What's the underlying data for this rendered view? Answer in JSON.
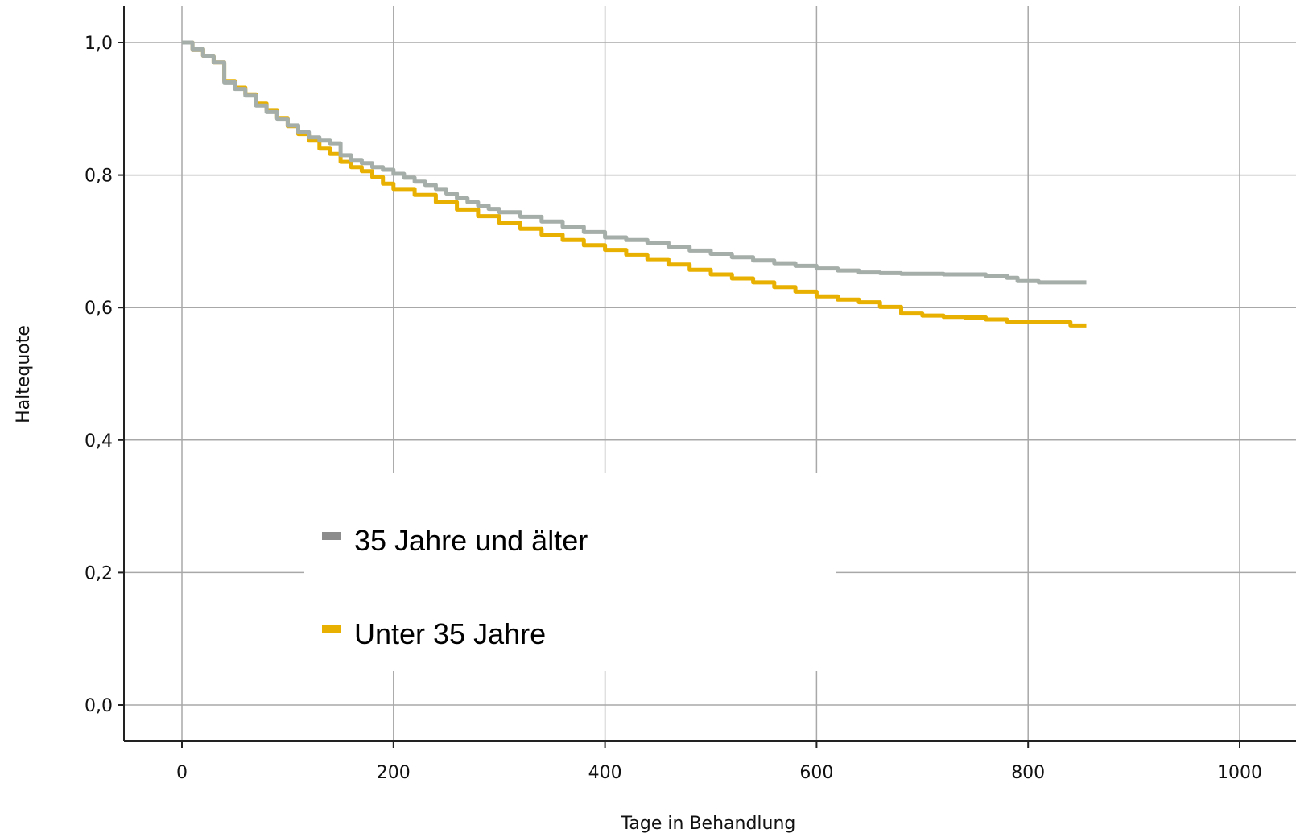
{
  "chart_data": {
    "type": "line",
    "title": "",
    "xlabel": "Tage in Behandlung",
    "ylabel": "Haltequote",
    "xlim": [
      0,
      1000
    ],
    "ylim": [
      0.0,
      1.0
    ],
    "x_ticks": [
      0,
      200,
      400,
      600,
      800,
      1000
    ],
    "x_tick_labels": [
      "0",
      "200",
      "400",
      "600",
      "800",
      "1000"
    ],
    "y_ticks": [
      0.0,
      0.2,
      0.4,
      0.6,
      0.8,
      1.0
    ],
    "y_tick_labels": [
      "0,0",
      "0,2",
      "0,4",
      "0,6",
      "0,8",
      "1,0"
    ],
    "grid": true,
    "legend_position": "center-left inside plot",
    "series": [
      {
        "name": "35 Jahre und älter",
        "color": "#a6aea9",
        "legend_color": "#8c8c8c",
        "step": true,
        "points": [
          [
            0,
            1.0
          ],
          [
            10,
            0.99
          ],
          [
            20,
            0.98
          ],
          [
            30,
            0.97
          ],
          [
            40,
            0.94
          ],
          [
            50,
            0.93
          ],
          [
            60,
            0.92
          ],
          [
            70,
            0.905
          ],
          [
            80,
            0.895
          ],
          [
            90,
            0.885
          ],
          [
            100,
            0.875
          ],
          [
            110,
            0.865
          ],
          [
            120,
            0.857
          ],
          [
            130,
            0.852
          ],
          [
            140,
            0.848
          ],
          [
            150,
            0.83
          ],
          [
            160,
            0.823
          ],
          [
            170,
            0.818
          ],
          [
            180,
            0.812
          ],
          [
            190,
            0.808
          ],
          [
            200,
            0.802
          ],
          [
            210,
            0.796
          ],
          [
            220,
            0.79
          ],
          [
            230,
            0.785
          ],
          [
            240,
            0.779
          ],
          [
            250,
            0.772
          ],
          [
            260,
            0.765
          ],
          [
            270,
            0.759
          ],
          [
            280,
            0.754
          ],
          [
            290,
            0.749
          ],
          [
            300,
            0.744
          ],
          [
            320,
            0.737
          ],
          [
            340,
            0.73
          ],
          [
            360,
            0.722
          ],
          [
            380,
            0.714
          ],
          [
            400,
            0.706
          ],
          [
            420,
            0.702
          ],
          [
            440,
            0.698
          ],
          [
            460,
            0.692
          ],
          [
            480,
            0.686
          ],
          [
            500,
            0.681
          ],
          [
            520,
            0.676
          ],
          [
            540,
            0.671
          ],
          [
            560,
            0.667
          ],
          [
            580,
            0.663
          ],
          [
            600,
            0.659
          ],
          [
            620,
            0.656
          ],
          [
            640,
            0.653
          ],
          [
            660,
            0.652
          ],
          [
            680,
            0.651
          ],
          [
            700,
            0.651
          ],
          [
            720,
            0.65
          ],
          [
            740,
            0.65
          ],
          [
            760,
            0.648
          ],
          [
            780,
            0.645
          ],
          [
            790,
            0.64
          ],
          [
            810,
            0.638
          ],
          [
            830,
            0.638
          ],
          [
            855,
            0.638
          ]
        ]
      },
      {
        "name": "Unter 35 Jahre",
        "color": "#e8b000",
        "legend_color": "#e8b000",
        "step": true,
        "points": [
          [
            0,
            1.0
          ],
          [
            10,
            0.99
          ],
          [
            20,
            0.98
          ],
          [
            30,
            0.97
          ],
          [
            40,
            0.942
          ],
          [
            50,
            0.932
          ],
          [
            60,
            0.922
          ],
          [
            70,
            0.908
          ],
          [
            80,
            0.898
          ],
          [
            90,
            0.886
          ],
          [
            100,
            0.874
          ],
          [
            110,
            0.862
          ],
          [
            120,
            0.852
          ],
          [
            130,
            0.84
          ],
          [
            140,
            0.832
          ],
          [
            150,
            0.82
          ],
          [
            160,
            0.812
          ],
          [
            170,
            0.806
          ],
          [
            180,
            0.797
          ],
          [
            190,
            0.787
          ],
          [
            200,
            0.779
          ],
          [
            220,
            0.77
          ],
          [
            240,
            0.759
          ],
          [
            260,
            0.748
          ],
          [
            280,
            0.738
          ],
          [
            300,
            0.728
          ],
          [
            320,
            0.719
          ],
          [
            340,
            0.71
          ],
          [
            360,
            0.702
          ],
          [
            380,
            0.694
          ],
          [
            400,
            0.687
          ],
          [
            420,
            0.68
          ],
          [
            440,
            0.673
          ],
          [
            460,
            0.665
          ],
          [
            480,
            0.657
          ],
          [
            500,
            0.65
          ],
          [
            520,
            0.644
          ],
          [
            540,
            0.638
          ],
          [
            560,
            0.631
          ],
          [
            580,
            0.624
          ],
          [
            600,
            0.617
          ],
          [
            620,
            0.612
          ],
          [
            640,
            0.608
          ],
          [
            660,
            0.601
          ],
          [
            680,
            0.591
          ],
          [
            700,
            0.588
          ],
          [
            720,
            0.586
          ],
          [
            740,
            0.585
          ],
          [
            760,
            0.582
          ],
          [
            780,
            0.579
          ],
          [
            800,
            0.578
          ],
          [
            820,
            0.578
          ],
          [
            840,
            0.573
          ],
          [
            855,
            0.573
          ]
        ]
      }
    ]
  }
}
